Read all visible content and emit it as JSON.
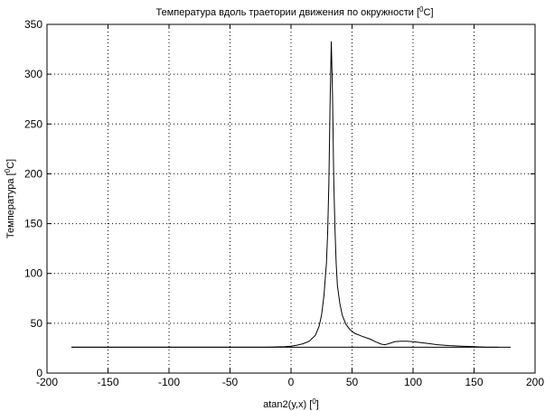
{
  "chart_data": {
    "type": "line",
    "title_prefix": "Температура вдоль траетории движения по окружности [",
    "title_sup": "0",
    "title_suffix": "C]",
    "xlabel_prefix": "atan2(y,x) [",
    "xlabel_sup": "0",
    "xlabel_suffix": "]",
    "ylabel_prefix": "Температура [",
    "ylabel_sup": "0",
    "ylabel_suffix": "C]",
    "xlim": [
      -200,
      200
    ],
    "ylim": [
      0,
      350
    ],
    "xticks": [
      -200,
      -150,
      -100,
      -50,
      0,
      50,
      100,
      150,
      200
    ],
    "yticks": [
      0,
      50,
      100,
      150,
      200,
      250,
      300,
      350
    ],
    "grid": true,
    "series": [
      {
        "points": [
          [
            -180,
            26
          ],
          [
            -20,
            26
          ],
          [
            -5,
            26.5
          ],
          [
            0,
            27
          ],
          [
            5,
            28
          ],
          [
            10,
            29.5
          ],
          [
            15,
            32
          ],
          [
            20,
            38
          ],
          [
            23,
            47
          ],
          [
            25,
            58
          ],
          [
            27,
            78
          ],
          [
            29,
            110
          ],
          [
            30,
            140
          ],
          [
            31,
            190
          ],
          [
            32,
            270
          ],
          [
            33,
            333
          ],
          [
            34,
            280
          ],
          [
            35,
            195
          ],
          [
            36,
            145
          ],
          [
            37,
            110
          ],
          [
            38,
            88
          ],
          [
            40,
            70
          ],
          [
            42,
            58
          ],
          [
            45,
            49
          ],
          [
            48,
            44
          ],
          [
            52,
            40
          ],
          [
            58,
            37
          ],
          [
            65,
            34
          ],
          [
            70,
            31
          ],
          [
            74,
            29
          ],
          [
            77,
            28.5
          ],
          [
            80,
            29.5
          ],
          [
            85,
            31.5
          ],
          [
            90,
            32
          ],
          [
            95,
            32
          ],
          [
            100,
            31.5
          ],
          [
            110,
            30
          ],
          [
            120,
            28.5
          ],
          [
            130,
            27.5
          ],
          [
            140,
            27
          ],
          [
            150,
            26.5
          ],
          [
            160,
            26
          ],
          [
            170,
            26
          ]
        ]
      },
      {
        "points": [
          [
            -180,
            26
          ],
          [
            180,
            26
          ]
        ]
      }
    ]
  }
}
